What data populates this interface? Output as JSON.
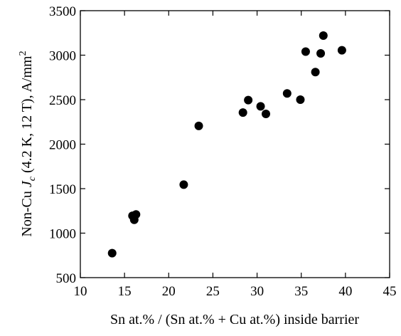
{
  "chart_data": {
    "type": "scatter",
    "title": "",
    "xlabel": "Sn at.% / (Sn at.% + Cu at.%) inside barrier",
    "ylabel_parts": {
      "prefix": "Non-Cu ",
      "symbol": "J",
      "subscript": "c",
      "suffix": " (4.2 K, 12 T), A/mm",
      "superscript": "2"
    },
    "xlim": [
      10,
      45
    ],
    "ylim": [
      500,
      3500
    ],
    "xticks": [
      10,
      15,
      20,
      25,
      30,
      35,
      40,
      45
    ],
    "yticks": [
      500,
      1000,
      1500,
      2000,
      2500,
      3000,
      3500
    ],
    "grid": false,
    "legend": "none",
    "marker_color": "#000000",
    "series": [
      {
        "points": [
          {
            "x": 13.6,
            "y": 775
          },
          {
            "x": 15.9,
            "y": 1195
          },
          {
            "x": 16.1,
            "y": 1150
          },
          {
            "x": 16.3,
            "y": 1210
          },
          {
            "x": 21.7,
            "y": 1545
          },
          {
            "x": 23.4,
            "y": 2205
          },
          {
            "x": 28.4,
            "y": 2355
          },
          {
            "x": 29.0,
            "y": 2495
          },
          {
            "x": 30.4,
            "y": 2425
          },
          {
            "x": 31.0,
            "y": 2340
          },
          {
            "x": 33.4,
            "y": 2570
          },
          {
            "x": 34.9,
            "y": 2500
          },
          {
            "x": 35.5,
            "y": 3040
          },
          {
            "x": 36.6,
            "y": 2810
          },
          {
            "x": 37.2,
            "y": 3020
          },
          {
            "x": 37.5,
            "y": 3220
          },
          {
            "x": 39.6,
            "y": 3055
          }
        ]
      }
    ]
  }
}
